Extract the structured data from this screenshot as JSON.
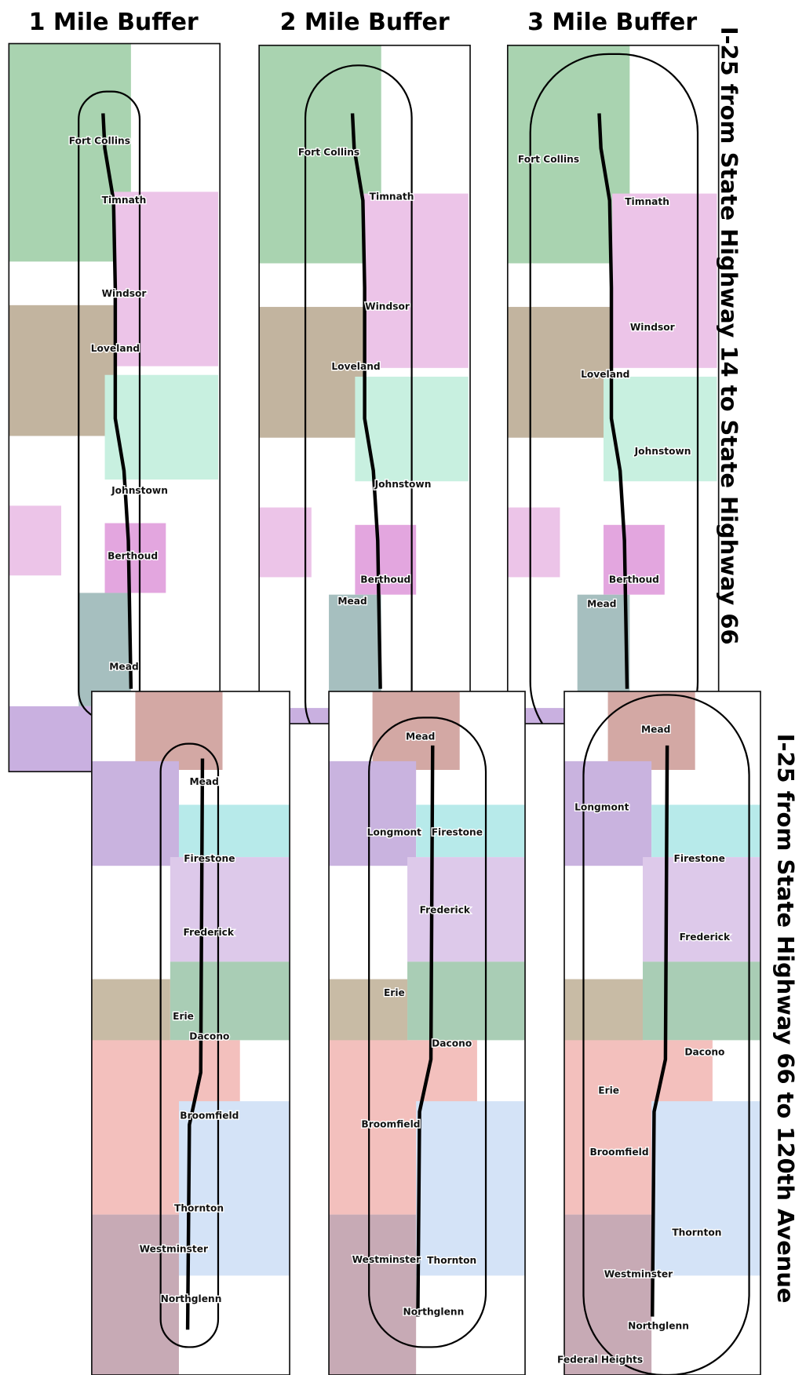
{
  "headers": [
    "1 Mile Buffer",
    "2 Mile Buffer",
    "3 Mile Buffer"
  ],
  "side_labels": [
    "I-25 from State Highway 14 to State Highway 66",
    "I-25 from State Highway 66 to 120th Avenue"
  ],
  "panels": [
    {
      "labels": [
        "Fort Collins",
        "Timnath",
        "Windsor",
        "Loveland",
        "Johnstown",
        "Berthoud",
        "Mead"
      ]
    },
    {
      "labels": [
        "Fort Collins",
        "Timnath",
        "Windsor",
        "Loveland",
        "Johnstown",
        "Berthoud",
        "Mead"
      ]
    },
    {
      "labels": [
        "Fort Collins",
        "Timnath",
        "Windsor",
        "Loveland",
        "Johnstown",
        "Berthoud",
        "Mead"
      ]
    },
    {
      "labels": [
        "Mead",
        "Firestone",
        "Frederick",
        "Erie",
        "Dacono",
        "Broomfield",
        "Thornton",
        "Westminster",
        "Northglenn"
      ]
    },
    {
      "labels": [
        "Mead",
        "Longmont",
        "Firestone",
        "Frederick",
        "Erie",
        "Dacono",
        "Broomfield",
        "Westminster",
        "Thornton",
        "Northglenn"
      ]
    },
    {
      "labels": [
        "Mead",
        "Longmont",
        "Firestone",
        "Frederick",
        "Dacono",
        "Erie",
        "Broomfield",
        "Thornton",
        "Westminster",
        "Northglenn",
        "Federal Heights"
      ]
    }
  ]
}
